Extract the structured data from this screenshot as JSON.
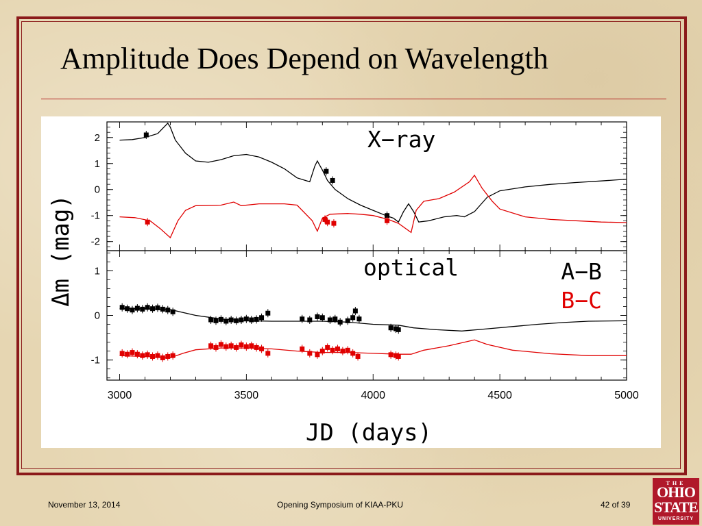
{
  "slide": {
    "title": "Amplitude Does Depend on Wavelength"
  },
  "footer": {
    "date": "November 13, 2014",
    "event": "Opening Symposium of KIAA-PKU",
    "page": "42 of 39"
  },
  "logo": {
    "the": "THE",
    "ohio": "OHIO",
    "state": "STATE",
    "university": "UNIVERSITY"
  },
  "colors": {
    "frame": "#8b1a1a",
    "series_ab": "#000000",
    "series_bc": "#e00000",
    "logo_bg": "#b0182a"
  },
  "chart_data": [
    {
      "type": "line",
      "panel": "X-ray",
      "annotation": "X−ray",
      "xlabel": "JD (days)",
      "ylabel": "Δm (mag)",
      "xlim": [
        2950,
        5000
      ],
      "ylim": [
        -2.35,
        2.6
      ],
      "yticks": [
        2,
        1,
        0,
        -1,
        -2
      ],
      "series": [
        {
          "name": "A−B",
          "model": [
            [
              3000,
              1.9
            ],
            [
              3050,
              1.92
            ],
            [
              3100,
              2.0
            ],
            [
              3150,
              2.15
            ],
            [
              3190,
              2.55
            ],
            [
              3200,
              2.4
            ],
            [
              3220,
              1.9
            ],
            [
              3260,
              1.4
            ],
            [
              3300,
              1.1
            ],
            [
              3350,
              1.05
            ],
            [
              3400,
              1.15
            ],
            [
              3450,
              1.3
            ],
            [
              3500,
              1.35
            ],
            [
              3550,
              1.25
            ],
            [
              3600,
              1.05
            ],
            [
              3650,
              0.8
            ],
            [
              3700,
              0.45
            ],
            [
              3750,
              0.3
            ],
            [
              3770,
              0.9
            ],
            [
              3780,
              1.1
            ],
            [
              3800,
              0.75
            ],
            [
              3820,
              0.35
            ],
            [
              3850,
              0.0
            ],
            [
              3900,
              -0.35
            ],
            [
              3950,
              -0.6
            ],
            [
              4000,
              -0.8
            ],
            [
              4050,
              -1.0
            ],
            [
              4080,
              -1.1
            ],
            [
              4100,
              -1.25
            ],
            [
              4120,
              -0.85
            ],
            [
              4140,
              -0.55
            ],
            [
              4160,
              -0.85
            ],
            [
              4180,
              -1.25
            ],
            [
              4220,
              -1.2
            ],
            [
              4280,
              -1.05
            ],
            [
              4330,
              -1.0
            ],
            [
              4360,
              -1.05
            ],
            [
              4400,
              -0.85
            ],
            [
              4450,
              -0.3
            ],
            [
              4500,
              -0.05
            ],
            [
              4600,
              0.1
            ],
            [
              4700,
              0.2
            ],
            [
              4800,
              0.27
            ],
            [
              4900,
              0.33
            ],
            [
              5000,
              0.4
            ]
          ],
          "points": [
            [
              3105,
              2.1
            ],
            [
              3815,
              0.7
            ],
            [
              3840,
              0.35
            ],
            [
              4055,
              -1.0
            ]
          ]
        },
        {
          "name": "B−C",
          "model": [
            [
              3000,
              -1.05
            ],
            [
              3060,
              -1.08
            ],
            [
              3120,
              -1.2
            ],
            [
              3160,
              -1.5
            ],
            [
              3200,
              -1.85
            ],
            [
              3230,
              -1.2
            ],
            [
              3260,
              -0.8
            ],
            [
              3300,
              -0.62
            ],
            [
              3400,
              -0.6
            ],
            [
              3450,
              -0.48
            ],
            [
              3480,
              -0.62
            ],
            [
              3550,
              -0.55
            ],
            [
              3650,
              -0.55
            ],
            [
              3700,
              -0.6
            ],
            [
              3760,
              -1.2
            ],
            [
              3780,
              -1.6
            ],
            [
              3800,
              -1.1
            ],
            [
              3830,
              -0.95
            ],
            [
              3900,
              -0.92
            ],
            [
              3950,
              -0.95
            ],
            [
              4000,
              -1.0
            ],
            [
              4060,
              -1.15
            ],
            [
              4100,
              -1.3
            ],
            [
              4150,
              -1.65
            ],
            [
              4170,
              -0.8
            ],
            [
              4200,
              -0.45
            ],
            [
              4260,
              -0.35
            ],
            [
              4320,
              -0.1
            ],
            [
              4380,
              0.3
            ],
            [
              4400,
              0.55
            ],
            [
              4430,
              0.05
            ],
            [
              4470,
              -0.45
            ],
            [
              4500,
              -0.75
            ],
            [
              4600,
              -1.05
            ],
            [
              4700,
              -1.15
            ],
            [
              4800,
              -1.2
            ],
            [
              4900,
              -1.25
            ],
            [
              5000,
              -1.27
            ]
          ],
          "points": [
            [
              3110,
              -1.25
            ],
            [
              3810,
              -1.15
            ],
            [
              3820,
              -1.25
            ],
            [
              3845,
              -1.3
            ],
            [
              4055,
              -1.2
            ]
          ]
        }
      ]
    },
    {
      "type": "line",
      "panel": "optical",
      "annotation": "optical",
      "xlim": [
        2950,
        5000
      ],
      "ylim": [
        -1.45,
        1.45
      ],
      "yticks": [
        1,
        0,
        -1
      ],
      "xticks": [
        3000,
        3500,
        4000,
        4500,
        5000
      ],
      "legend": [
        "A−B",
        "B−C"
      ],
      "series": [
        {
          "name": "A−B",
          "model": [
            [
              3000,
              0.15
            ],
            [
              3100,
              0.15
            ],
            [
              3200,
              0.13
            ],
            [
              3300,
              0.0
            ],
            [
              3400,
              -0.08
            ],
            [
              3500,
              -0.12
            ],
            [
              3600,
              -0.13
            ],
            [
              3700,
              -0.13
            ],
            [
              3800,
              -0.13
            ],
            [
              3900,
              -0.15
            ],
            [
              4000,
              -0.2
            ],
            [
              4100,
              -0.22
            ],
            [
              4160,
              -0.28
            ],
            [
              4250,
              -0.32
            ],
            [
              4350,
              -0.35
            ],
            [
              4450,
              -0.3
            ],
            [
              4550,
              -0.25
            ],
            [
              4650,
              -0.2
            ],
            [
              4750,
              -0.16
            ],
            [
              4850,
              -0.13
            ],
            [
              5000,
              -0.12
            ]
          ],
          "points": [
            [
              3010,
              0.18
            ],
            [
              3030,
              0.15
            ],
            [
              3050,
              0.12
            ],
            [
              3070,
              0.16
            ],
            [
              3090,
              0.14
            ],
            [
              3110,
              0.18
            ],
            [
              3130,
              0.15
            ],
            [
              3150,
              0.17
            ],
            [
              3170,
              0.14
            ],
            [
              3190,
              0.12
            ],
            [
              3210,
              0.08
            ],
            [
              3360,
              -0.1
            ],
            [
              3380,
              -0.12
            ],
            [
              3400,
              -0.09
            ],
            [
              3420,
              -0.13
            ],
            [
              3440,
              -0.1
            ],
            [
              3460,
              -0.12
            ],
            [
              3480,
              -0.1
            ],
            [
              3500,
              -0.08
            ],
            [
              3520,
              -0.1
            ],
            [
              3540,
              -0.09
            ],
            [
              3560,
              -0.05
            ],
            [
              3585,
              0.05
            ],
            [
              3720,
              -0.08
            ],
            [
              3750,
              -0.1
            ],
            [
              3780,
              -0.03
            ],
            [
              3800,
              -0.05
            ],
            [
              3830,
              -0.1
            ],
            [
              3850,
              -0.08
            ],
            [
              3870,
              -0.15
            ],
            [
              3900,
              -0.12
            ],
            [
              3920,
              -0.05
            ],
            [
              3930,
              0.1
            ],
            [
              3945,
              -0.08
            ],
            [
              4070,
              -0.28
            ],
            [
              4090,
              -0.3
            ],
            [
              4100,
              -0.32
            ]
          ]
        },
        {
          "name": "B−C",
          "model": [
            [
              3000,
              -0.9
            ],
            [
              3100,
              -0.92
            ],
            [
              3200,
              -0.95
            ],
            [
              3250,
              -0.85
            ],
            [
              3300,
              -0.77
            ],
            [
              3400,
              -0.73
            ],
            [
              3500,
              -0.73
            ],
            [
              3600,
              -0.75
            ],
            [
              3700,
              -0.8
            ],
            [
              3800,
              -0.83
            ],
            [
              3900,
              -0.83
            ],
            [
              4000,
              -0.85
            ],
            [
              4100,
              -0.87
            ],
            [
              4150,
              -0.87
            ],
            [
              4200,
              -0.78
            ],
            [
              4300,
              -0.68
            ],
            [
              4400,
              -0.55
            ],
            [
              4450,
              -0.65
            ],
            [
              4550,
              -0.78
            ],
            [
              4700,
              -0.86
            ],
            [
              4850,
              -0.9
            ],
            [
              5000,
              -0.9
            ]
          ],
          "points": [
            [
              3010,
              -0.85
            ],
            [
              3030,
              -0.87
            ],
            [
              3050,
              -0.83
            ],
            [
              3070,
              -0.87
            ],
            [
              3090,
              -0.9
            ],
            [
              3110,
              -0.88
            ],
            [
              3130,
              -0.92
            ],
            [
              3150,
              -0.9
            ],
            [
              3170,
              -0.95
            ],
            [
              3190,
              -0.92
            ],
            [
              3210,
              -0.9
            ],
            [
              3360,
              -0.68
            ],
            [
              3380,
              -0.72
            ],
            [
              3400,
              -0.65
            ],
            [
              3420,
              -0.7
            ],
            [
              3440,
              -0.68
            ],
            [
              3460,
              -0.72
            ],
            [
              3480,
              -0.66
            ],
            [
              3500,
              -0.7
            ],
            [
              3520,
              -0.68
            ],
            [
              3540,
              -0.72
            ],
            [
              3560,
              -0.75
            ],
            [
              3585,
              -0.85
            ],
            [
              3720,
              -0.75
            ],
            [
              3750,
              -0.85
            ],
            [
              3780,
              -0.88
            ],
            [
              3800,
              -0.8
            ],
            [
              3820,
              -0.72
            ],
            [
              3840,
              -0.78
            ],
            [
              3860,
              -0.75
            ],
            [
              3880,
              -0.8
            ],
            [
              3900,
              -0.78
            ],
            [
              3920,
              -0.85
            ],
            [
              3940,
              -0.92
            ],
            [
              4070,
              -0.88
            ],
            [
              4090,
              -0.9
            ],
            [
              4100,
              -0.92
            ]
          ]
        }
      ]
    }
  ]
}
